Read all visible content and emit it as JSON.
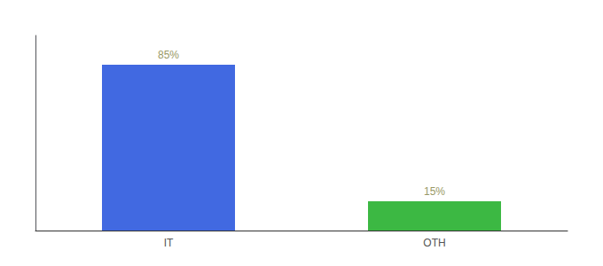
{
  "chart_data": {
    "type": "bar",
    "categories": [
      "IT",
      "OTH"
    ],
    "values": [
      85,
      15
    ],
    "value_labels": [
      "85%",
      "15%"
    ],
    "colors": [
      "#4169e1",
      "#3cb843"
    ],
    "ylim": [
      0,
      100
    ],
    "data_labels": true,
    "tick_labels": "x",
    "grid": false
  }
}
